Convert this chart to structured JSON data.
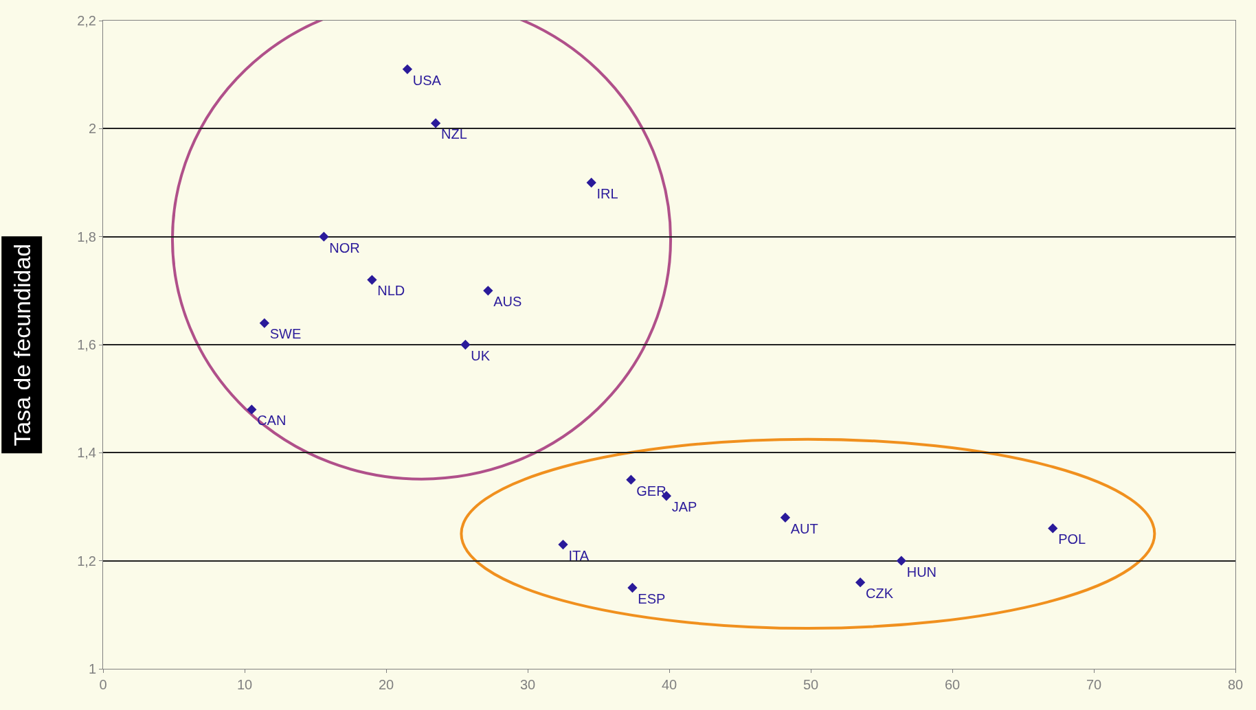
{
  "chart_data": {
    "type": "scatter",
    "ylabel": "Tasa de fecundidad",
    "xlim": [
      0,
      80
    ],
    "xticks": [
      0,
      10,
      20,
      30,
      40,
      50,
      60,
      70,
      80
    ],
    "ylim": [
      1,
      2.2
    ],
    "yticks": [
      {
        "value": 1,
        "label": "1"
      },
      {
        "value": 1.2,
        "label": "1,2"
      },
      {
        "value": 1.4,
        "label": "1,4"
      },
      {
        "value": 1.6,
        "label": "1,6"
      },
      {
        "value": 1.8,
        "label": "1,8"
      },
      {
        "value": 2,
        "label": "2"
      },
      {
        "value": 2.2,
        "label": "2,2"
      }
    ],
    "grid": "y",
    "marker": "diamond",
    "series": [
      {
        "color": "#2a1a9a",
        "x": [
          21.5,
          23.5,
          34.5,
          15.6,
          19.0,
          27.2,
          11.4,
          25.6,
          10.5
        ],
        "values": [
          2.11,
          2.01,
          1.9,
          1.8,
          1.72,
          1.7,
          1.64,
          1.6,
          1.48
        ],
        "value_labels": [
          "USA",
          "NZL",
          "IRL",
          "NOR",
          "NLD",
          "AUS",
          "SWE",
          "UK",
          "CAN"
        ]
      },
      {
        "color": "#2a1a9a",
        "x": [
          37.3,
          39.8,
          48.2,
          32.5,
          67.1,
          56.4,
          37.4,
          53.5
        ],
        "values": [
          1.35,
          1.32,
          1.28,
          1.23,
          1.26,
          1.2,
          1.15,
          1.16
        ],
        "value_labels": [
          "GER",
          "JAP",
          "AUT",
          "ITA",
          "POL",
          "HUN",
          "ESP",
          "CZK"
        ]
      }
    ]
  }
}
